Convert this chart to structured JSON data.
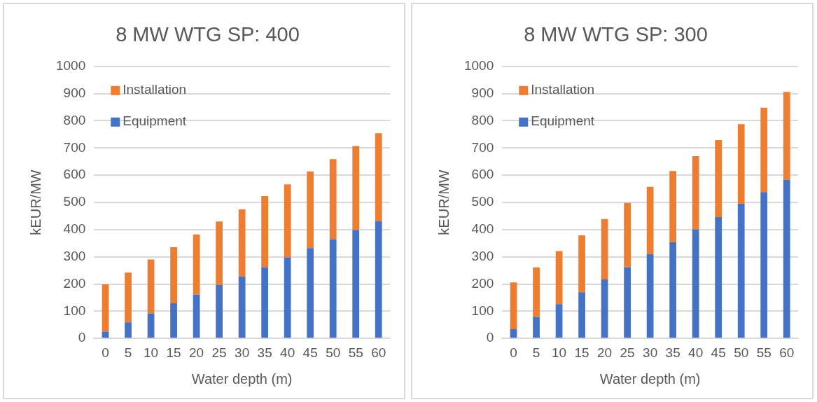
{
  "chart_data": [
    {
      "type": "bar",
      "title": "8 MW WTG SP: 400",
      "xlabel": "Water depth (m)",
      "ylabel": "kEUR/MW",
      "categories": [
        "0",
        "5",
        "10",
        "15",
        "20",
        "25",
        "30",
        "35",
        "40",
        "45",
        "50",
        "55",
        "60"
      ],
      "stacked": true,
      "ylim": [
        0,
        1000
      ],
      "yticks": [
        0,
        100,
        200,
        300,
        400,
        500,
        600,
        700,
        800,
        900,
        1000
      ],
      "grid": "y",
      "legend": "top left",
      "series": [
        {
          "name": "Equipment",
          "color": "#4472c4",
          "values": [
            25,
            59,
            92,
            129,
            161,
            196,
            228,
            262,
            298,
            332,
            365,
            398,
            431
          ]
        },
        {
          "name": "Installation",
          "color": "#ed7d31",
          "values": [
            174,
            183,
            198,
            206,
            221,
            234,
            246,
            261,
            268,
            282,
            294,
            309,
            323
          ]
        }
      ]
    },
    {
      "type": "bar",
      "title": "8 MW WTG SP: 300",
      "xlabel": "Water depth (m)",
      "ylabel": "kEUR/MW",
      "categories": [
        "0",
        "5",
        "10",
        "15",
        "20",
        "25",
        "30",
        "35",
        "40",
        "45",
        "50",
        "55",
        "60"
      ],
      "stacked": true,
      "ylim": [
        0,
        1000
      ],
      "yticks": [
        0,
        100,
        200,
        300,
        400,
        500,
        600,
        700,
        800,
        900,
        1000
      ],
      "grid": "y",
      "legend": "top left",
      "series": [
        {
          "name": "Equipment",
          "color": "#4472c4",
          "values": [
            34,
            79,
            126,
            170,
            217,
            262,
            310,
            354,
            401,
            446,
            495,
            538,
            583
          ]
        },
        {
          "name": "Installation",
          "color": "#ed7d31",
          "values": [
            172,
            182,
            195,
            209,
            222,
            236,
            247,
            261,
            269,
            283,
            293,
            310,
            323
          ]
        }
      ]
    }
  ]
}
